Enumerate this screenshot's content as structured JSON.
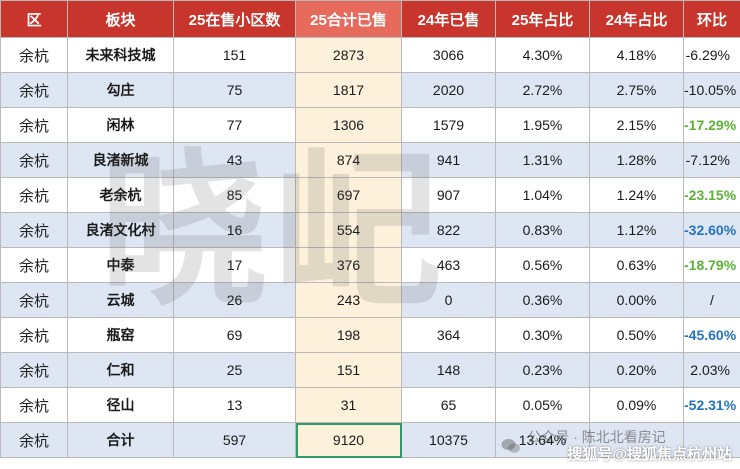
{
  "table": {
    "headers": [
      "区",
      "板块",
      "25在售小区数",
      "25合计已售",
      "24年已售",
      "25年占比",
      "24年占比",
      "环比"
    ],
    "rows": [
      {
        "district": "余杭",
        "sector": "未来科技城",
        "listed25": "151",
        "sold25": "2873",
        "sold24": "3066",
        "share25": "4.30%",
        "share24": "4.18%",
        "mom": "-6.29%",
        "mom_color": "plain"
      },
      {
        "district": "余杭",
        "sector": "勾庄",
        "listed25": "75",
        "sold25": "1817",
        "sold24": "2020",
        "share25": "2.72%",
        "share24": "2.75%",
        "mom": "-10.05%",
        "mom_color": "plain"
      },
      {
        "district": "余杭",
        "sector": "闲林",
        "listed25": "77",
        "sold25": "1306",
        "sold24": "1579",
        "share25": "1.95%",
        "share24": "2.15%",
        "mom": "-17.29%",
        "mom_color": "green"
      },
      {
        "district": "余杭",
        "sector": "良渚新城",
        "listed25": "43",
        "sold25": "874",
        "sold24": "941",
        "share25": "1.31%",
        "share24": "1.28%",
        "mom": "-7.12%",
        "mom_color": "plain"
      },
      {
        "district": "余杭",
        "sector": "老余杭",
        "listed25": "85",
        "sold25": "697",
        "sold24": "907",
        "share25": "1.04%",
        "share24": "1.24%",
        "mom": "-23.15%",
        "mom_color": "green"
      },
      {
        "district": "余杭",
        "sector": "良渚文化村",
        "listed25": "16",
        "sold25": "554",
        "sold24": "822",
        "share25": "0.83%",
        "share24": "1.12%",
        "mom": "-32.60%",
        "mom_color": "blue"
      },
      {
        "district": "余杭",
        "sector": "中泰",
        "listed25": "17",
        "sold25": "376",
        "sold24": "463",
        "share25": "0.56%",
        "share24": "0.63%",
        "mom": "-18.79%",
        "mom_color": "green"
      },
      {
        "district": "余杭",
        "sector": "云城",
        "listed25": "26",
        "sold25": "243",
        "sold24": "0",
        "share25": "0.36%",
        "share24": "0.00%",
        "mom": "/",
        "mom_color": "plain"
      },
      {
        "district": "余杭",
        "sector": "瓶窑",
        "listed25": "69",
        "sold25": "198",
        "sold24": "364",
        "share25": "0.30%",
        "share24": "0.50%",
        "mom": "-45.60%",
        "mom_color": "blue"
      },
      {
        "district": "余杭",
        "sector": "仁和",
        "listed25": "25",
        "sold25": "151",
        "sold24": "148",
        "share25": "0.23%",
        "share24": "0.20%",
        "mom": "2.03%",
        "mom_color": "plain"
      },
      {
        "district": "余杭",
        "sector": "径山",
        "listed25": "13",
        "sold25": "31",
        "sold24": "65",
        "share25": "0.05%",
        "share24": "0.09%",
        "mom": "-52.31%",
        "mom_color": "blue"
      },
      {
        "district": "余杭",
        "sector": "合计",
        "listed25": "597",
        "sold25": "9120",
        "sold24": "10375",
        "share25": "13.64%",
        "share24": "",
        "mom": "",
        "mom_color": "plain"
      }
    ]
  },
  "watermark": {
    "text": "晓屺"
  },
  "credit": {
    "line1": "公众号 · 陈北北看房记",
    "line2": "搜狐号@搜狐焦点杭州站"
  },
  "colors": {
    "header": "#c8352c",
    "header_highlight": "#e76b5c",
    "row_alt": "#dfe6f3",
    "column_highlight": "#fdf1dc",
    "green": "#5bb335",
    "blue": "#2474c0"
  }
}
